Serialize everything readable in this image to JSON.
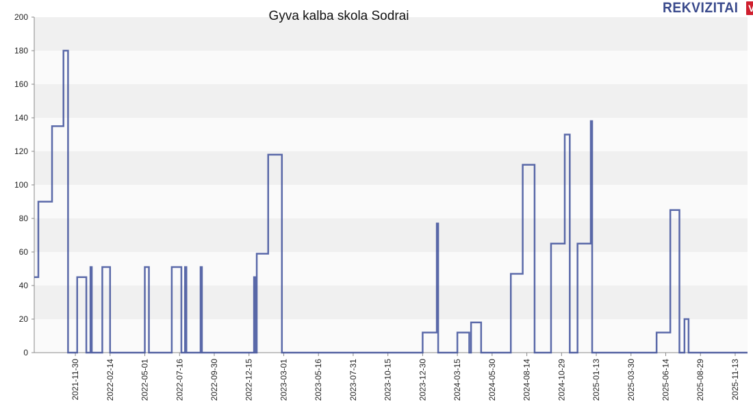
{
  "logo": {
    "text": "REKVIZITAI",
    "badge": "VŽ"
  },
  "chart_data": {
    "type": "line",
    "step": true,
    "title": "Gyva kalba skola Sodrai",
    "xlabel": "",
    "ylabel": "",
    "ylim": [
      0,
      200
    ],
    "yticks": [
      0,
      20,
      40,
      60,
      80,
      100,
      120,
      140,
      160,
      180,
      200
    ],
    "xlim": [
      "2021-09-01",
      "2025-12-10"
    ],
    "xticks": [
      "2021-11-30",
      "2022-02-14",
      "2022-05-01",
      "2022-07-16",
      "2022-09-30",
      "2022-12-15",
      "2023-03-01",
      "2023-05-16",
      "2023-07-31",
      "2023-10-15",
      "2023-12-30",
      "2024-03-15",
      "2024-05-30",
      "2024-08-14",
      "2024-10-29",
      "2025-01-13",
      "2025-03-30",
      "2025-06-14",
      "2025-08-29",
      "2025-11-13"
    ],
    "grid": "horizontal-bands",
    "line_color": "#3d4f9a",
    "series": [
      {
        "points": [
          [
            "2021-09-01",
            45
          ],
          [
            "2021-09-10",
            45
          ],
          [
            "2021-09-10",
            90
          ],
          [
            "2021-10-10",
            90
          ],
          [
            "2021-10-10",
            135
          ],
          [
            "2021-11-04",
            135
          ],
          [
            "2021-11-04",
            180
          ],
          [
            "2021-11-14",
            180
          ],
          [
            "2021-11-14",
            0
          ],
          [
            "2021-12-04",
            0
          ],
          [
            "2021-12-04",
            45
          ],
          [
            "2021-12-24",
            45
          ],
          [
            "2021-12-24",
            0
          ],
          [
            "2022-01-02",
            0
          ],
          [
            "2022-01-02",
            51
          ],
          [
            "2022-01-05",
            51
          ],
          [
            "2022-01-05",
            0
          ],
          [
            "2022-01-28",
            0
          ],
          [
            "2022-01-28",
            51
          ],
          [
            "2022-02-14",
            51
          ],
          [
            "2022-02-14",
            0
          ],
          [
            "2022-05-01",
            0
          ],
          [
            "2022-05-01",
            51
          ],
          [
            "2022-05-10",
            51
          ],
          [
            "2022-05-10",
            0
          ],
          [
            "2022-06-29",
            0
          ],
          [
            "2022-06-29",
            51
          ],
          [
            "2022-07-20",
            51
          ],
          [
            "2022-07-20",
            0
          ],
          [
            "2022-07-28",
            0
          ],
          [
            "2022-07-28",
            51
          ],
          [
            "2022-07-31",
            51
          ],
          [
            "2022-07-31",
            0
          ],
          [
            "2022-08-31",
            0
          ],
          [
            "2022-08-31",
            51
          ],
          [
            "2022-09-03",
            51
          ],
          [
            "2022-09-03",
            0
          ],
          [
            "2022-12-26",
            0
          ],
          [
            "2022-12-26",
            45
          ],
          [
            "2022-12-29",
            45
          ],
          [
            "2022-12-29",
            0
          ],
          [
            "2023-01-01",
            0
          ],
          [
            "2023-01-01",
            59
          ],
          [
            "2023-01-26",
            59
          ],
          [
            "2023-01-26",
            118
          ],
          [
            "2023-02-25",
            118
          ],
          [
            "2023-02-25",
            0
          ],
          [
            "2023-12-30",
            0
          ],
          [
            "2023-12-30",
            12
          ],
          [
            "2024-01-30",
            12
          ],
          [
            "2024-01-30",
            77
          ],
          [
            "2024-02-02",
            77
          ],
          [
            "2024-02-02",
            0
          ],
          [
            "2024-03-15",
            0
          ],
          [
            "2024-03-15",
            12
          ],
          [
            "2024-04-10",
            12
          ],
          [
            "2024-04-10",
            0
          ],
          [
            "2024-04-14",
            0
          ],
          [
            "2024-04-14",
            18
          ],
          [
            "2024-05-06",
            18
          ],
          [
            "2024-05-06",
            0
          ],
          [
            "2024-07-10",
            0
          ],
          [
            "2024-07-10",
            47
          ],
          [
            "2024-08-05",
            47
          ],
          [
            "2024-08-05",
            112
          ],
          [
            "2024-08-31",
            112
          ],
          [
            "2024-08-31",
            0
          ],
          [
            "2024-10-06",
            0
          ],
          [
            "2024-10-06",
            65
          ],
          [
            "2024-11-05",
            65
          ],
          [
            "2024-11-05",
            130
          ],
          [
            "2024-11-16",
            130
          ],
          [
            "2024-11-16",
            0
          ],
          [
            "2024-12-03",
            0
          ],
          [
            "2024-12-03",
            65
          ],
          [
            "2025-01-01",
            65
          ],
          [
            "2025-01-01",
            138
          ],
          [
            "2025-01-04",
            138
          ],
          [
            "2025-01-04",
            0
          ],
          [
            "2025-05-25",
            0
          ],
          [
            "2025-05-25",
            12
          ],
          [
            "2025-06-24",
            12
          ],
          [
            "2025-06-24",
            85
          ],
          [
            "2025-07-14",
            85
          ],
          [
            "2025-07-14",
            0
          ],
          [
            "2025-07-25",
            0
          ],
          [
            "2025-07-25",
            20
          ],
          [
            "2025-08-03",
            20
          ],
          [
            "2025-08-03",
            0
          ],
          [
            "2025-12-10",
            0
          ]
        ]
      }
    ]
  }
}
